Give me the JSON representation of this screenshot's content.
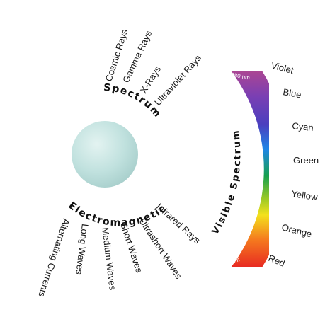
{
  "radiation_labels": {
    "cosmic_rays": "Cosmic Rays",
    "gamma_rays": "Gamma Rays",
    "x_rays": "X-Rays",
    "ultraviolet_rays": "Ultraviolet Rays",
    "infrared_rays": "Infrared Rays",
    "ultrashort_waves": "Ultrashort Waves",
    "short_waves": "Short Waves",
    "medium_waves": "Medium Waves",
    "long_waves": "Long Waves",
    "alternating_currents": "Alternating Currents"
  },
  "arc_titles": {
    "spectrum": "Spectrum",
    "electromagnetic": "Electromagnetic",
    "visible_spectrum": "Visible Spectrum"
  },
  "wavelengths": {
    "start": "380 nm",
    "end": "780 nm"
  },
  "visible_colors": {
    "violet": "Violet",
    "blue": "Blue",
    "cyan": "Cyan",
    "green": "Green",
    "yellow": "Yellow",
    "orange": "Orange",
    "red": "Red"
  },
  "palette": {
    "sphere": "#bfe0de",
    "violet": "#b2478e",
    "blue": "#4a3fbf",
    "cyan": "#1f86e6",
    "green": "#16a04e",
    "yellow": "#f3e11c",
    "orange": "#f57a1e",
    "red": "#e51b23"
  }
}
